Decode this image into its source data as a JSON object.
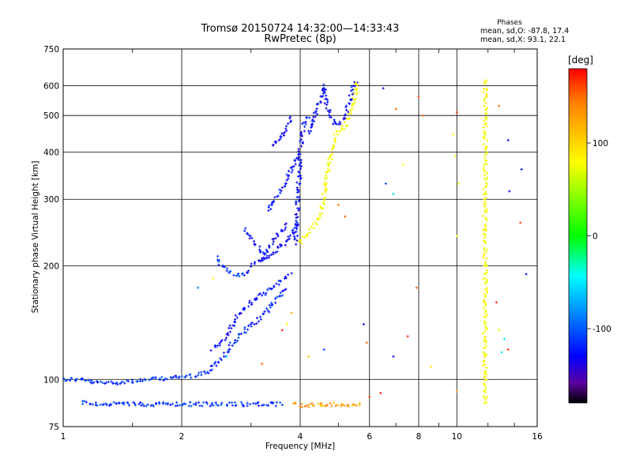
{
  "chart_data": {
    "type": "scatter",
    "title": "Tromsø 20150724 14:32:00—14:33:43",
    "subtitle": "RwPretec (8p)",
    "xlabel": "Frequency [MHz]",
    "ylabel": "Stationary phase Virtual Height [km]",
    "xscale": "log",
    "yscale": "log",
    "xlim": [
      1,
      16
    ],
    "ylim": [
      75,
      750
    ],
    "xticks": [
      "1",
      "2",
      "4",
      "6",
      "8",
      "10",
      "16"
    ],
    "yticks": [
      "75",
      "100",
      "200",
      "300",
      "400",
      "500",
      "600",
      "750"
    ],
    "grid": true,
    "stats": {
      "header": "Phases",
      "line_o": "mean, sd,O: -87.8, 17.4",
      "line_x": "mean, sd,X:  93.1, 22.1"
    },
    "colorbar": {
      "label": "[deg]",
      "range": [
        -180,
        180
      ],
      "ticks": [
        "100",
        "0",
        "-100"
      ]
    },
    "traces": [
      {
        "name": "",
        "phase": -95,
        "points": [
          [
            1.0,
            100
          ],
          [
            1.1,
            100
          ],
          [
            1.2,
            98
          ],
          [
            1.35,
            98
          ],
          [
            1.5,
            99
          ],
          [
            1.7,
            100
          ],
          [
            1.9,
            101
          ],
          [
            2.1,
            102
          ],
          [
            2.3,
            104
          ]
        ]
      },
      {
        "name": "",
        "phase": -100,
        "points": [
          [
            2.3,
            104
          ],
          [
            2.5,
            112
          ],
          [
            2.7,
            125
          ],
          [
            2.9,
            135
          ],
          [
            3.1,
            142
          ],
          [
            3.3,
            152
          ],
          [
            3.5,
            165
          ],
          [
            3.7,
            175
          ]
        ]
      },
      {
        "name": "",
        "phase": -110,
        "points": [
          [
            2.4,
            120
          ],
          [
            2.6,
            130
          ],
          [
            2.8,
            150
          ],
          [
            3.0,
            160
          ],
          [
            3.2,
            168
          ],
          [
            3.5,
            180
          ],
          [
            3.8,
            190
          ]
        ]
      },
      {
        "name": "",
        "phase": -95,
        "points": [
          [
            2.45,
            210
          ],
          [
            2.55,
            198
          ],
          [
            2.7,
            190
          ],
          [
            2.85,
            188
          ],
          [
            3.0,
            195
          ]
        ]
      },
      {
        "name": "",
        "phase": -110,
        "points": [
          [
            3.0,
            200
          ],
          [
            3.2,
            208
          ],
          [
            3.4,
            215
          ],
          [
            3.6,
            225
          ],
          [
            3.8,
            240
          ],
          [
            3.95,
            260
          ]
        ]
      },
      {
        "name": "",
        "phase": -110,
        "points": [
          [
            3.2,
            205
          ],
          [
            3.35,
            225
          ],
          [
            3.5,
            240
          ],
          [
            3.6,
            250
          ],
          [
            3.7,
            260
          ]
        ]
      },
      {
        "name": "",
        "phase": -110,
        "points": [
          [
            2.9,
            250
          ],
          [
            3.0,
            235
          ],
          [
            3.1,
            225
          ],
          [
            3.2,
            218
          ],
          [
            3.3,
            212
          ]
        ]
      },
      {
        "name": "",
        "phase": -105,
        "points": [
          [
            3.3,
            280
          ],
          [
            3.45,
            300
          ],
          [
            3.6,
            320
          ],
          [
            3.75,
            350
          ],
          [
            3.9,
            380
          ],
          [
            3.95,
            390
          ]
        ]
      },
      {
        "name": "",
        "phase": -110,
        "points": [
          [
            3.9,
            230
          ],
          [
            3.92,
            260
          ],
          [
            3.95,
            300
          ],
          [
            3.98,
            350
          ],
          [
            4.0,
            400
          ],
          [
            4.05,
            450
          ],
          [
            4.1,
            480
          ],
          [
            4.2,
            500
          ]
        ]
      },
      {
        "name": "",
        "phase": -110,
        "points": [
          [
            3.4,
            420
          ],
          [
            3.5,
            425
          ],
          [
            3.6,
            440
          ],
          [
            3.7,
            460
          ],
          [
            3.75,
            480
          ],
          [
            3.8,
            500
          ]
        ]
      },
      {
        "name": "",
        "phase": -110,
        "points": [
          [
            4.2,
            450
          ],
          [
            4.35,
            500
          ],
          [
            4.5,
            550
          ],
          [
            4.6,
            600
          ],
          [
            4.7,
            520
          ],
          [
            4.85,
            480
          ],
          [
            5.0,
            470
          ],
          [
            5.2,
            500
          ],
          [
            5.35,
            550
          ],
          [
            5.45,
            600
          ],
          [
            5.55,
            620
          ]
        ]
      },
      {
        "name": "",
        "phase": 95,
        "points": [
          [
            3.95,
            230
          ],
          [
            4.15,
            240
          ],
          [
            4.35,
            255
          ],
          [
            4.5,
            275
          ],
          [
            4.6,
            310
          ],
          [
            4.7,
            350
          ],
          [
            4.8,
            400
          ],
          [
            4.95,
            450
          ],
          [
            5.1,
            460
          ],
          [
            5.25,
            480
          ],
          [
            5.4,
            520
          ],
          [
            5.5,
            560
          ],
          [
            5.6,
            620
          ]
        ]
      },
      {
        "name": "",
        "phase": -95,
        "points": [
          [
            1.12,
            87
          ],
          [
            1.2,
            86
          ],
          [
            1.5,
            86
          ],
          [
            2.5,
            86
          ],
          [
            2.75,
            86
          ],
          [
            3.05,
            86
          ],
          [
            3.4,
            86
          ],
          [
            3.6,
            86
          ]
        ]
      },
      {
        "name": "",
        "phase": 130,
        "points": [
          [
            3.85,
            86
          ],
          [
            4.1,
            85
          ],
          [
            4.5,
            86
          ],
          [
            5.2,
            86
          ],
          [
            5.45,
            85
          ],
          [
            5.7,
            86
          ]
        ]
      },
      {
        "name": "",
        "phase": 95,
        "points": [
          [
            11.8,
            620
          ],
          [
            11.8,
            500
          ],
          [
            11.8,
            400
          ],
          [
            11.8,
            300
          ],
          [
            11.8,
            200
          ],
          [
            11.8,
            150
          ],
          [
            11.8,
            100
          ],
          [
            11.8,
            85
          ]
        ]
      }
    ],
    "scatter_points": [
      {
        "x": 6.5,
        "y": 590,
        "phase": -120
      },
      {
        "x": 7.0,
        "y": 520,
        "phase": 150
      },
      {
        "x": 8.0,
        "y": 560,
        "phase": 160
      },
      {
        "x": 8.2,
        "y": 500,
        "phase": 150
      },
      {
        "x": 10.0,
        "y": 510,
        "phase": 170
      },
      {
        "x": 6.6,
        "y": 330,
        "phase": -90
      },
      {
        "x": 6.9,
        "y": 310,
        "phase": -40
      },
      {
        "x": 7.3,
        "y": 370,
        "phase": 100
      },
      {
        "x": 12.8,
        "y": 530,
        "phase": 150
      },
      {
        "x": 13.5,
        "y": 430,
        "phase": -110
      },
      {
        "x": 13.6,
        "y": 315,
        "phase": -110
      },
      {
        "x": 14.6,
        "y": 360,
        "phase": -110
      },
      {
        "x": 14.5,
        "y": 260,
        "phase": 160
      },
      {
        "x": 15.0,
        "y": 190,
        "phase": -110
      },
      {
        "x": 9.8,
        "y": 445,
        "phase": 100
      },
      {
        "x": 9.9,
        "y": 390,
        "phase": 100
      },
      {
        "x": 10.1,
        "y": 330,
        "phase": 90
      },
      {
        "x": 7.9,
        "y": 175,
        "phase": 150
      },
      {
        "x": 5.8,
        "y": 140,
        "phase": -110
      },
      {
        "x": 5.9,
        "y": 125,
        "phase": 150
      },
      {
        "x": 10.0,
        "y": 93,
        "phase": 130
      },
      {
        "x": 8.6,
        "y": 108,
        "phase": 110
      },
      {
        "x": 6.9,
        "y": 115,
        "phase": -110
      },
      {
        "x": 12.8,
        "y": 135,
        "phase": 80
      },
      {
        "x": 13.2,
        "y": 128,
        "phase": -40
      },
      {
        "x": 13.0,
        "y": 118,
        "phase": -40
      },
      {
        "x": 12.6,
        "y": 160,
        "phase": 170
      },
      {
        "x": 13.5,
        "y": 120,
        "phase": 170
      },
      {
        "x": 6.0,
        "y": 90,
        "phase": 160
      },
      {
        "x": 6.4,
        "y": 92,
        "phase": 170
      },
      {
        "x": 3.8,
        "y": 150,
        "phase": 130
      },
      {
        "x": 3.7,
        "y": 140,
        "phase": 100
      },
      {
        "x": 3.6,
        "y": 135,
        "phase": 170
      },
      {
        "x": 4.2,
        "y": 115,
        "phase": 120
      },
      {
        "x": 4.6,
        "y": 120,
        "phase": -90
      },
      {
        "x": 3.2,
        "y": 110,
        "phase": 150
      },
      {
        "x": 2.6,
        "y": 115,
        "phase": -40
      },
      {
        "x": 2.2,
        "y": 175,
        "phase": -70
      },
      {
        "x": 2.4,
        "y": 185,
        "phase": 100
      },
      {
        "x": 5.0,
        "y": 290,
        "phase": 140
      },
      {
        "x": 5.2,
        "y": 270,
        "phase": 150
      },
      {
        "x": 10.0,
        "y": 240,
        "phase": 100
      },
      {
        "x": 7.5,
        "y": 130,
        "phase": 170
      }
    ]
  }
}
